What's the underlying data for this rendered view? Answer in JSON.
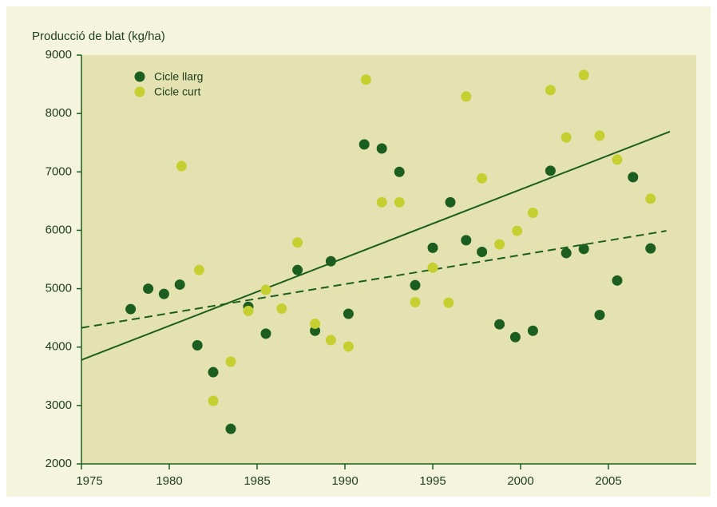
{
  "chart_data": {
    "type": "scatter",
    "y_axis_label": "Producció de blat (kg/ha)",
    "xlim": [
      1975,
      2010
    ],
    "xticks": [
      1975,
      1980,
      1985,
      1990,
      1995,
      2000,
      2005
    ],
    "ylim": [
      2000,
      9000
    ],
    "yticks": [
      2000,
      3000,
      4000,
      5000,
      6000,
      7000,
      8000,
      9000
    ],
    "legend": "top-left",
    "series": [
      {
        "name": "Cicle llarg",
        "color": "#1b5e1f",
        "x": [
          1977.8,
          1978.8,
          1979.7,
          1980.6,
          1981.6,
          1982.5,
          1983.5,
          1984.5,
          1985.5,
          1987.3,
          1988.3,
          1989.2,
          1990.2,
          1991.1,
          1992.1,
          1993.1,
          1994.0,
          1995.0,
          1996.0,
          1996.9,
          1997.8,
          1998.8,
          1999.7,
          2000.7,
          2001.7,
          2002.6,
          2003.6,
          2004.5,
          2005.5,
          2006.4,
          2007.4
        ],
        "values": [
          4650,
          5000,
          4910,
          5070,
          4030,
          3570,
          2600,
          4690,
          4230,
          5320,
          4280,
          5470,
          4570,
          7470,
          7400,
          7000,
          5060,
          5700,
          6480,
          5830,
          5630,
          4390,
          4170,
          4280,
          7020,
          5610,
          5680,
          4550,
          5140,
          6910,
          5690
        ]
      },
      {
        "name": "Cicle curt",
        "color": "#c6cf30",
        "x": [
          1980.7,
          1981.7,
          1982.5,
          1983.5,
          1984.5,
          1985.5,
          1986.4,
          1987.3,
          1988.3,
          1989.2,
          1990.2,
          1991.2,
          1992.1,
          1993.1,
          1994.0,
          1995.0,
          1995.9,
          1996.9,
          1997.8,
          1998.8,
          1999.8,
          2000.7,
          2001.7,
          2002.6,
          2003.6,
          2004.5,
          2005.5,
          2007.4
        ],
        "values": [
          7100,
          5320,
          3080,
          3750,
          4620,
          4980,
          4660,
          5790,
          4400,
          4120,
          4010,
          8580,
          6480,
          6480,
          4770,
          5360,
          4760,
          8290,
          6890,
          5760,
          5990,
          6300,
          8400,
          7590,
          8660,
          7620,
          7210,
          6540
        ]
      }
    ],
    "trend_lines": [
      {
        "color": "#1b5e1f",
        "style": "solid",
        "x": [
          1975,
          2008.5
        ],
        "values": [
          3780,
          7690
        ]
      },
      {
        "color": "#1b5e1f",
        "style": "dashed",
        "x": [
          1975,
          2008.3
        ],
        "values": [
          4330,
          5990
        ]
      }
    ]
  }
}
